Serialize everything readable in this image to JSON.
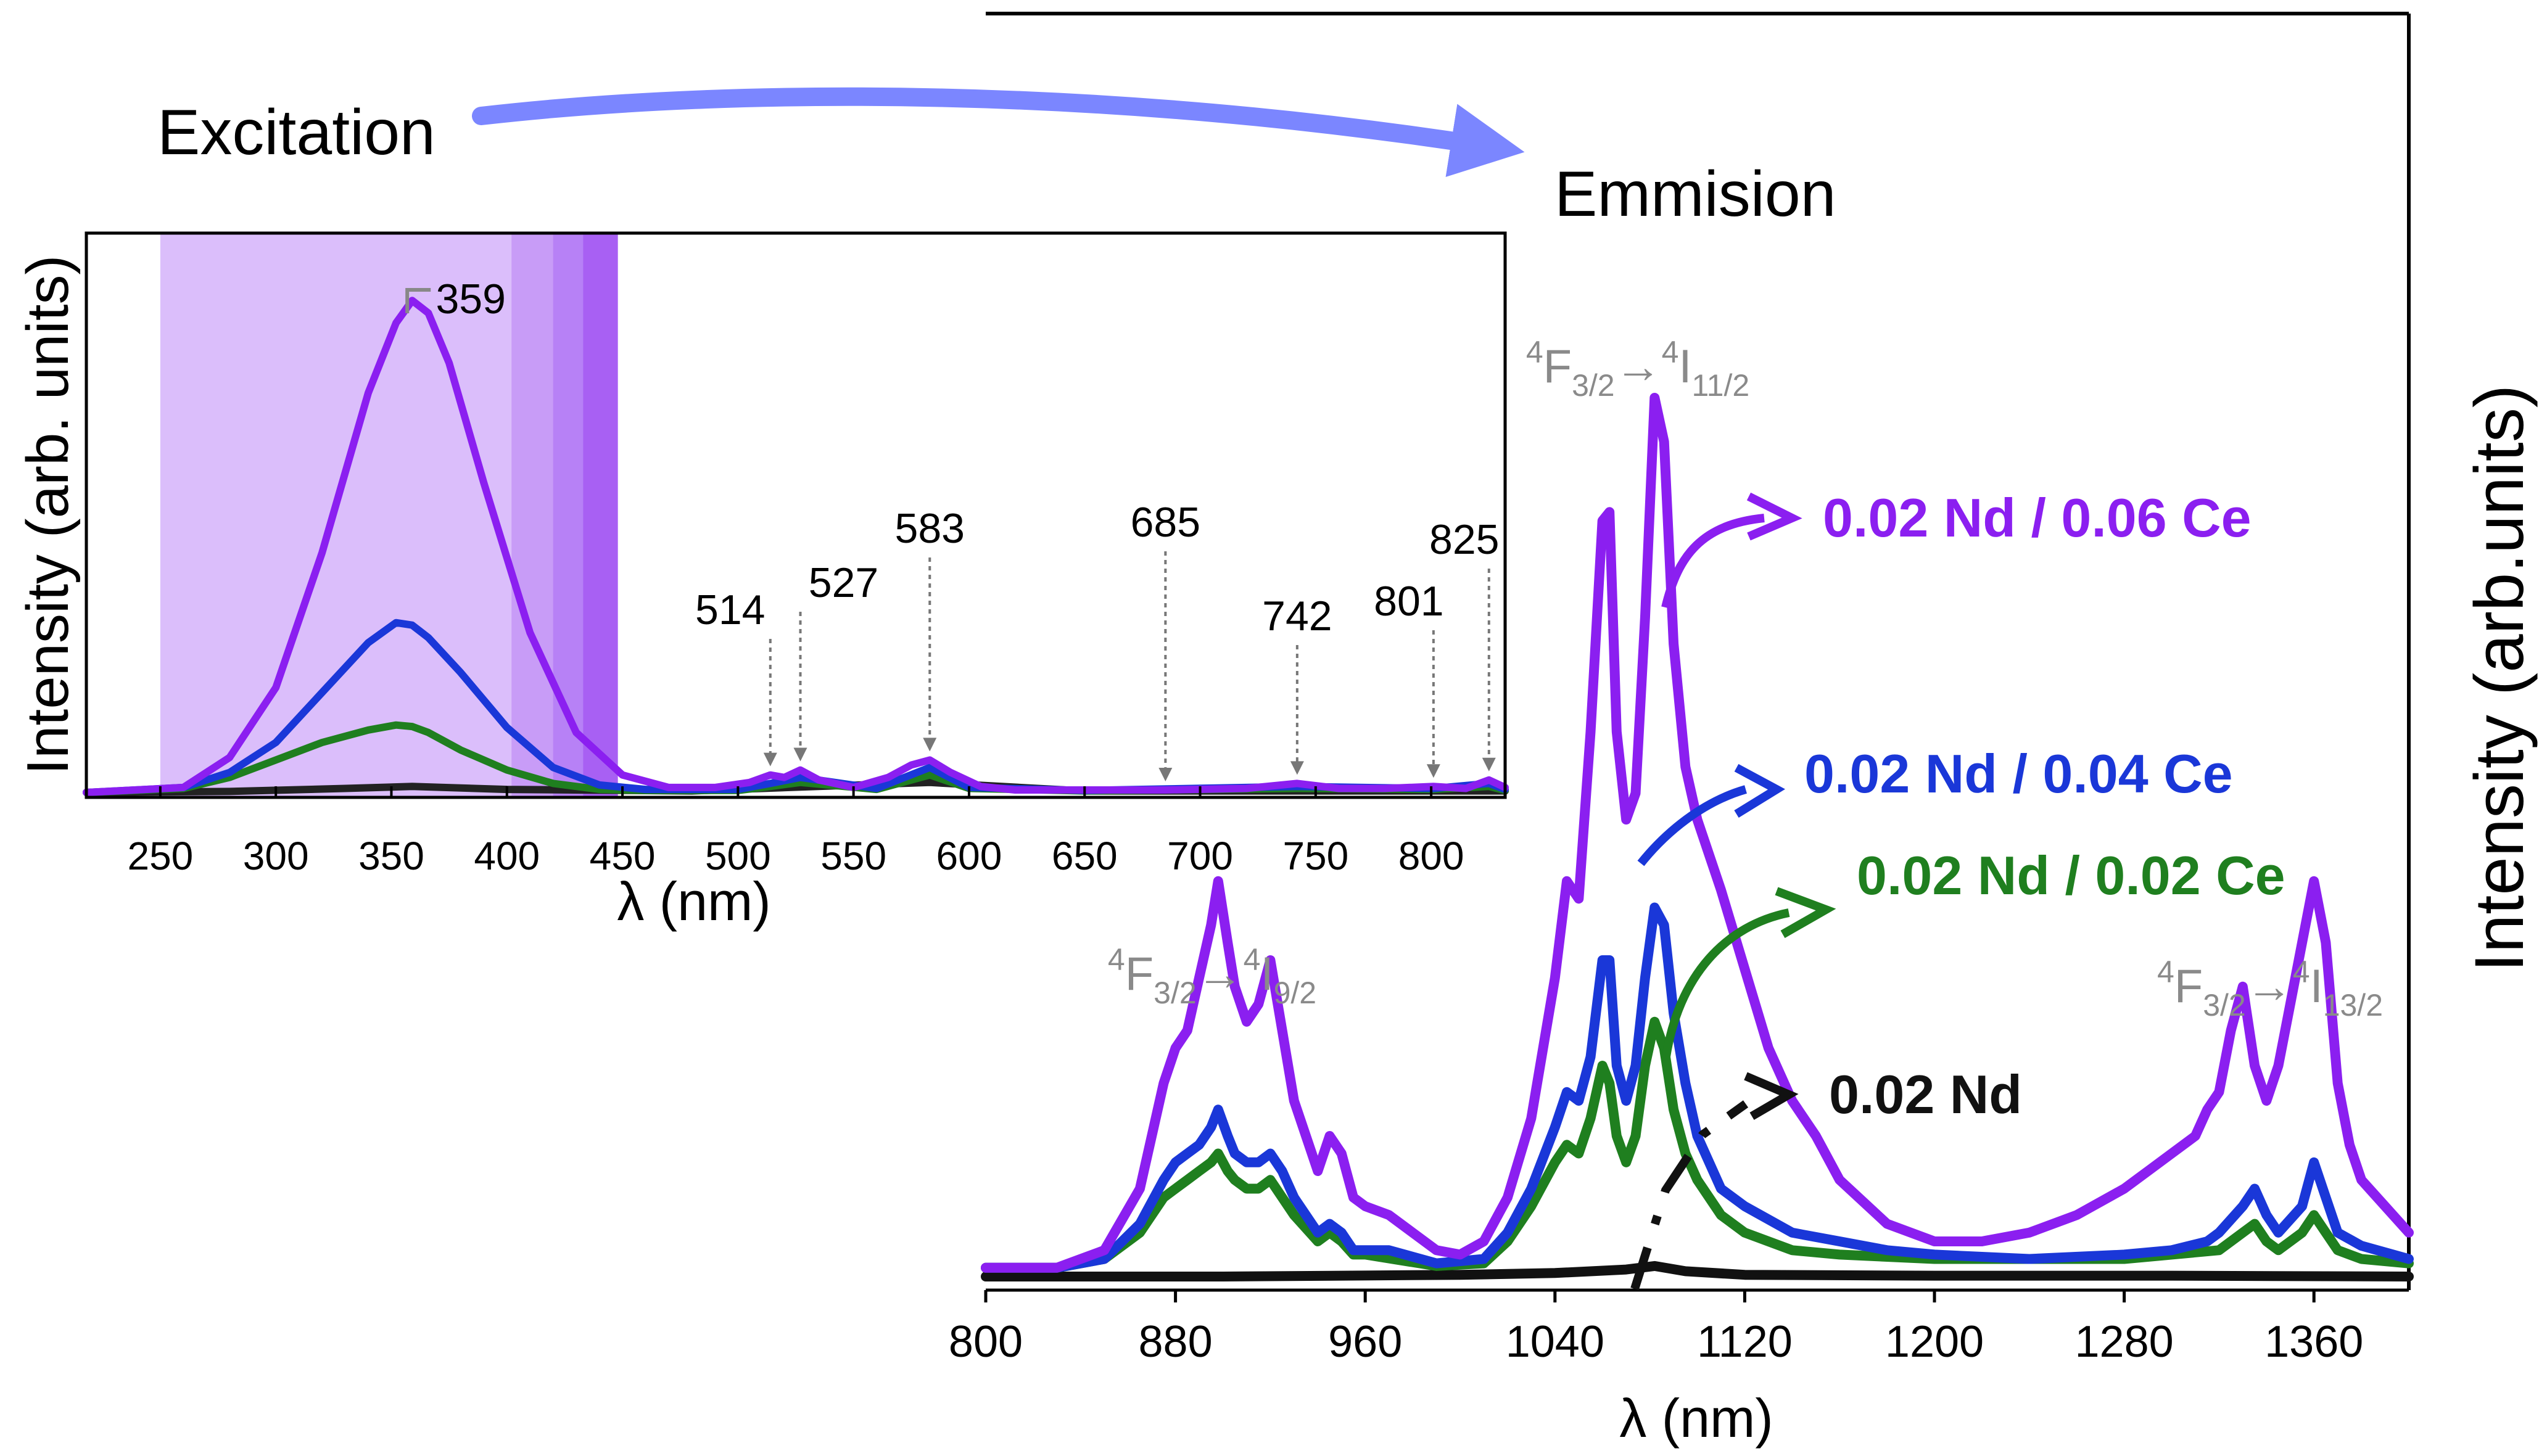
{
  "labels": {
    "excitation": "Excitation",
    "emission": "Emmision"
  },
  "chart_data": [
    {
      "type": "line",
      "name": "excitation-spectrum-inset",
      "xlabel": "λ (nm)",
      "ylabel": "Intensity (arb. units)",
      "xlim": [
        218,
        832
      ],
      "ylim": [
        0,
        1.12
      ],
      "xticks": [
        250,
        300,
        350,
        400,
        450,
        500,
        550,
        600,
        650,
        700,
        750,
        800
      ],
      "shaded_bands": [
        {
          "from": 250,
          "to": 448,
          "color": "#d9bbfb"
        },
        {
          "from": 402,
          "to": 448,
          "color": "#c79af7"
        },
        {
          "from": 420,
          "to": 448,
          "color": "#b680f5"
        },
        {
          "from": 433,
          "to": 448,
          "color": "#a75ef2"
        }
      ],
      "peak_labels": [
        {
          "x": 359,
          "text": "359"
        },
        {
          "x": 514,
          "text": "514"
        },
        {
          "x": 527,
          "text": "527"
        },
        {
          "x": 583,
          "text": "583"
        },
        {
          "x": 685,
          "text": "685"
        },
        {
          "x": 742,
          "text": "742"
        },
        {
          "x": 801,
          "text": "801"
        },
        {
          "x": 825,
          "text": "825"
        }
      ],
      "series": [
        {
          "color": "#8b1ff0",
          "x": [
            218,
            260,
            280,
            300,
            320,
            340,
            352,
            359,
            366,
            375,
            390,
            410,
            430,
            450,
            470,
            490,
            505,
            514,
            520,
            527,
            535,
            550,
            565,
            575,
            583,
            592,
            605,
            620,
            650,
            685,
            720,
            742,
            760,
            780,
            801,
            815,
            825,
            832
          ],
          "y": [
            0,
            0.01,
            0.07,
            0.21,
            0.48,
            0.8,
            0.94,
            0.985,
            0.96,
            0.86,
            0.62,
            0.32,
            0.12,
            0.035,
            0.01,
            0.01,
            0.02,
            0.035,
            0.03,
            0.045,
            0.025,
            0.01,
            0.03,
            0.055,
            0.065,
            0.04,
            0.012,
            0.005,
            0.005,
            0.005,
            0.008,
            0.018,
            0.008,
            0.008,
            0.012,
            0.008,
            0.025,
            0.01
          ]
        },
        {
          "color": "#1a37d8",
          "x": [
            218,
            260,
            280,
            300,
            320,
            340,
            352,
            359,
            366,
            380,
            400,
            420,
            440,
            460,
            500,
            514,
            527,
            560,
            583,
            600,
            650,
            742,
            801,
            825,
            832
          ],
          "y": [
            0,
            0.01,
            0.04,
            0.1,
            0.2,
            0.3,
            0.34,
            0.335,
            0.31,
            0.24,
            0.13,
            0.05,
            0.015,
            0.006,
            0.006,
            0.018,
            0.03,
            0.008,
            0.05,
            0.01,
            0.004,
            0.012,
            0.008,
            0.018,
            0.006
          ]
        },
        {
          "color": "#1f7f1f",
          "x": [
            218,
            260,
            280,
            300,
            320,
            340,
            352,
            359,
            366,
            380,
            400,
            420,
            440,
            460,
            500,
            514,
            527,
            560,
            583,
            600,
            650,
            742,
            801,
            825,
            832
          ],
          "y": [
            0,
            0.008,
            0.03,
            0.065,
            0.1,
            0.125,
            0.135,
            0.132,
            0.12,
            0.085,
            0.045,
            0.018,
            0.006,
            0.004,
            0.004,
            0.012,
            0.02,
            0.006,
            0.035,
            0.008,
            0.003,
            0.008,
            0.006,
            0.012,
            0.004
          ]
        },
        {
          "color": "#222222",
          "x": [
            218,
            280,
            330,
            359,
            400,
            480,
            583,
            650,
            832
          ],
          "y": [
            0,
            0.002,
            0.008,
            0.012,
            0.006,
            0.003,
            0.02,
            0.003,
            0.003
          ]
        }
      ]
    },
    {
      "type": "line",
      "name": "emission-spectrum",
      "xlabel": "λ (nm)",
      "ylabel": "Intensity (arb.units)",
      "xlim": [
        800,
        1400
      ],
      "ylim": [
        0,
        1.05
      ],
      "xticks": [
        800,
        880,
        960,
        1040,
        1120,
        1200,
        1280,
        1360
      ],
      "transition_labels": [
        {
          "x": 897,
          "base": "4F3/2→4I9/2",
          "parts": [
            "4",
            "F",
            "3/2",
            "→",
            "4",
            "I",
            "9/2"
          ]
        },
        {
          "x": 1075,
          "base": "4F3/2→4I11/2",
          "parts": [
            "4",
            "F",
            "3/2",
            "→",
            "4",
            "I",
            "11/2"
          ]
        },
        {
          "x": 1360,
          "base": "4F3/2→4I13/2",
          "parts": [
            "4",
            "F",
            "3/2",
            "→",
            "4",
            "I",
            "13/2"
          ]
        }
      ],
      "series": [
        {
          "name": "0.02 Nd / 0.06 Ce",
          "color": "#8b1ff0",
          "x": [
            800,
            830,
            850,
            865,
            875,
            880,
            885,
            890,
            895,
            898,
            902,
            905,
            910,
            915,
            920,
            925,
            930,
            940,
            945,
            950,
            955,
            960,
            970,
            980,
            990,
            1000,
            1010,
            1020,
            1030,
            1040,
            1045,
            1050,
            1055,
            1060,
            1063,
            1066,
            1070,
            1074,
            1078,
            1082,
            1086,
            1090,
            1095,
            1100,
            1110,
            1120,
            1130,
            1140,
            1150,
            1160,
            1180,
            1200,
            1220,
            1240,
            1260,
            1280,
            1290,
            1300,
            1310,
            1315,
            1320,
            1325,
            1330,
            1335,
            1340,
            1345,
            1350,
            1355,
            1360,
            1365,
            1370,
            1375,
            1380,
            1390,
            1400
          ],
          "y": [
            0.01,
            0.01,
            0.03,
            0.1,
            0.22,
            0.26,
            0.28,
            0.34,
            0.4,
            0.45,
            0.38,
            0.33,
            0.29,
            0.31,
            0.36,
            0.28,
            0.2,
            0.12,
            0.16,
            0.14,
            0.09,
            0.08,
            0.07,
            0.05,
            0.03,
            0.025,
            0.04,
            0.09,
            0.18,
            0.34,
            0.45,
            0.43,
            0.62,
            0.86,
            0.87,
            0.62,
            0.52,
            0.55,
            0.75,
            1.0,
            0.95,
            0.72,
            0.58,
            0.52,
            0.44,
            0.35,
            0.26,
            0.2,
            0.16,
            0.11,
            0.06,
            0.04,
            0.04,
            0.05,
            0.07,
            0.1,
            0.12,
            0.14,
            0.16,
            0.19,
            0.21,
            0.28,
            0.33,
            0.24,
            0.2,
            0.24,
            0.31,
            0.38,
            0.45,
            0.38,
            0.22,
            0.15,
            0.11,
            0.08,
            0.05
          ]
        },
        {
          "name": "0.02 Nd / 0.04 Ce",
          "color": "#1a37d8",
          "x": [
            800,
            830,
            850,
            865,
            875,
            880,
            885,
            890,
            895,
            898,
            902,
            905,
            910,
            915,
            920,
            925,
            930,
            940,
            945,
            950,
            955,
            960,
            970,
            990,
            1010,
            1020,
            1030,
            1040,
            1045,
            1050,
            1055,
            1060,
            1063,
            1066,
            1070,
            1074,
            1078,
            1082,
            1086,
            1090,
            1095,
            1100,
            1110,
            1120,
            1140,
            1160,
            1180,
            1200,
            1240,
            1280,
            1300,
            1315,
            1320,
            1330,
            1335,
            1340,
            1345,
            1355,
            1360,
            1365,
            1370,
            1380,
            1400
          ],
          "y": [
            0.01,
            0.01,
            0.02,
            0.06,
            0.11,
            0.13,
            0.14,
            0.15,
            0.17,
            0.19,
            0.16,
            0.14,
            0.13,
            0.13,
            0.14,
            0.12,
            0.09,
            0.05,
            0.06,
            0.05,
            0.03,
            0.03,
            0.03,
            0.015,
            0.02,
            0.05,
            0.1,
            0.17,
            0.21,
            0.2,
            0.25,
            0.36,
            0.36,
            0.24,
            0.2,
            0.24,
            0.34,
            0.42,
            0.4,
            0.3,
            0.22,
            0.16,
            0.1,
            0.08,
            0.05,
            0.04,
            0.03,
            0.025,
            0.02,
            0.025,
            0.03,
            0.04,
            0.05,
            0.08,
            0.1,
            0.07,
            0.05,
            0.08,
            0.13,
            0.09,
            0.05,
            0.035,
            0.02
          ]
        },
        {
          "name": "0.02 Nd / 0.02 Ce",
          "color": "#1f7f1f",
          "x": [
            800,
            830,
            850,
            865,
            875,
            880,
            885,
            890,
            895,
            898,
            902,
            905,
            910,
            915,
            920,
            925,
            930,
            940,
            945,
            950,
            955,
            960,
            990,
            1010,
            1020,
            1030,
            1040,
            1045,
            1050,
            1055,
            1060,
            1063,
            1066,
            1070,
            1074,
            1078,
            1082,
            1086,
            1090,
            1095,
            1100,
            1110,
            1120,
            1140,
            1160,
            1200,
            1280,
            1320,
            1330,
            1335,
            1340,
            1345,
            1355,
            1360,
            1365,
            1370,
            1380,
            1400
          ],
          "y": [
            0.01,
            0.01,
            0.02,
            0.05,
            0.09,
            0.1,
            0.11,
            0.12,
            0.13,
            0.14,
            0.12,
            0.11,
            0.1,
            0.1,
            0.11,
            0.09,
            0.07,
            0.04,
            0.05,
            0.04,
            0.025,
            0.025,
            0.012,
            0.015,
            0.04,
            0.08,
            0.13,
            0.15,
            0.14,
            0.18,
            0.24,
            0.22,
            0.16,
            0.13,
            0.16,
            0.24,
            0.29,
            0.26,
            0.19,
            0.14,
            0.11,
            0.07,
            0.05,
            0.03,
            0.025,
            0.02,
            0.02,
            0.03,
            0.05,
            0.06,
            0.04,
            0.03,
            0.05,
            0.07,
            0.05,
            0.03,
            0.02,
            0.015
          ]
        },
        {
          "name": "0.02 Nd",
          "color": "#111111",
          "x": [
            800,
            900,
            1000,
            1040,
            1070,
            1082,
            1095,
            1120,
            1200,
            1300,
            1400
          ],
          "y": [
            0,
            0,
            0.002,
            0.004,
            0.008,
            0.012,
            0.006,
            0.002,
            0.001,
            0.001,
            0
          ]
        }
      ]
    }
  ]
}
